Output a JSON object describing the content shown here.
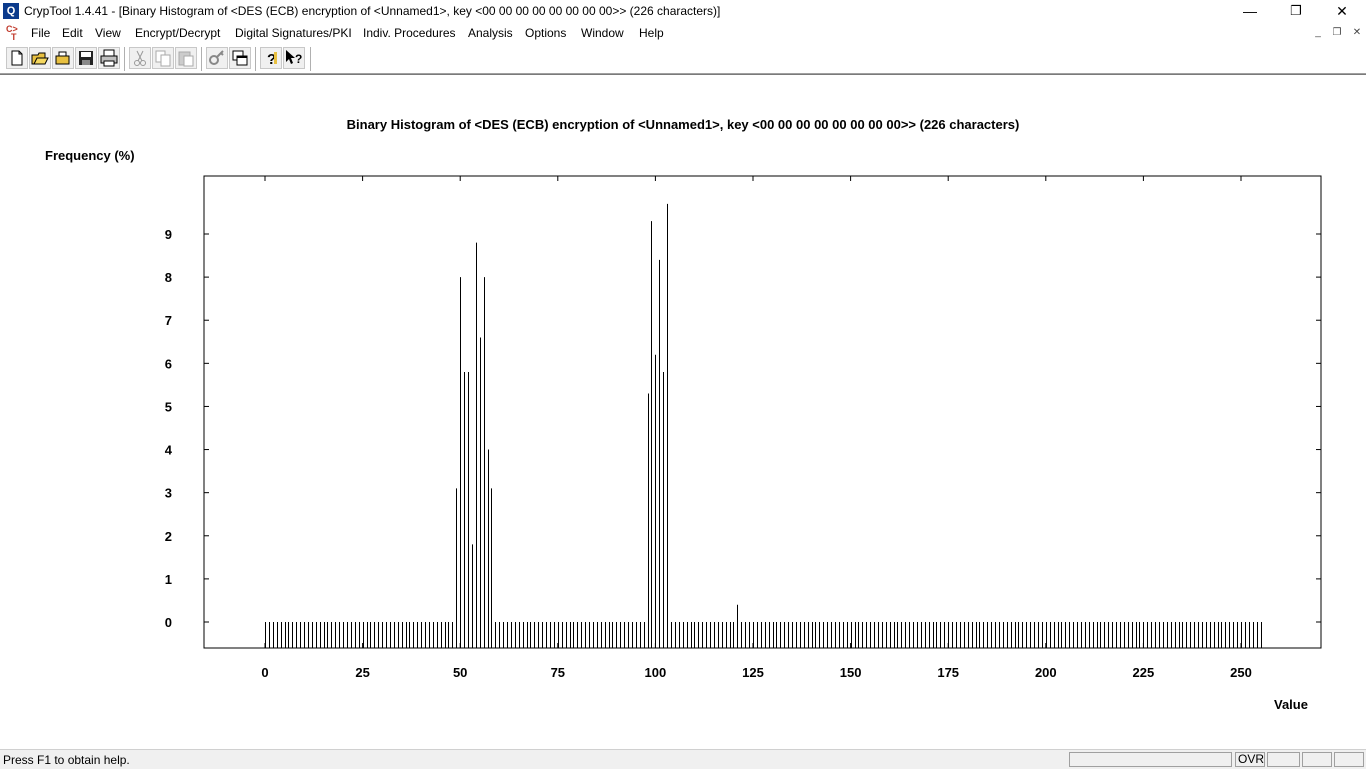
{
  "window": {
    "title": "CrypTool 1.4.41 - [Binary Histogram of <DES (ECB) encryption of <Unnamed1>, key <00 00 00 00 00 00 00 00>> (226 characters)]",
    "app_icon": "cryptool-logo-icon",
    "minimize_symbol": "—",
    "restore_symbol": "❐",
    "close_symbol": "✕"
  },
  "menubar": {
    "items": [
      "File",
      "Edit",
      "View",
      "Encrypt/Decrypt",
      "Digital Signatures/PKI",
      "Indiv. Procedures",
      "Analysis",
      "Options",
      "Window",
      "Help"
    ],
    "mdi_minimize": "_",
    "mdi_restore": "❐",
    "mdi_close": "✕"
  },
  "toolbar": {
    "buttons": [
      "new-document-icon",
      "open-folder-icon",
      "open-file-icon",
      "save-icon",
      "print-icon",
      "cut-icon",
      "copy-icon",
      "paste-icon",
      "key-icon",
      "window-icon",
      "help-icon",
      "context-help-icon"
    ]
  },
  "chart_data": {
    "type": "bar",
    "title": "Binary Histogram of <DES (ECB) encryption of <Unnamed1>, key <00 00 00 00 00 00 00 00>> (226 characters)",
    "ylabel": "Frequency (%)",
    "xlabel": "Value",
    "xlim": [
      0,
      255
    ],
    "ylim": [
      0,
      10
    ],
    "xticks": [
      0,
      25,
      50,
      75,
      100,
      125,
      150,
      175,
      200,
      225,
      250
    ],
    "yticks": [
      0,
      1,
      2,
      3,
      4,
      5,
      6,
      7,
      8,
      9
    ],
    "grid": false,
    "nonzero_values": [
      {
        "x": 49,
        "y": 3.1
      },
      {
        "x": 50,
        "y": 8.0
      },
      {
        "x": 51,
        "y": 5.8
      },
      {
        "x": 52,
        "y": 5.8
      },
      {
        "x": 53,
        "y": 1.8
      },
      {
        "x": 54,
        "y": 8.8
      },
      {
        "x": 55,
        "y": 6.6
      },
      {
        "x": 56,
        "y": 8.0
      },
      {
        "x": 57,
        "y": 4.0
      },
      {
        "x": 58,
        "y": 3.1
      },
      {
        "x": 98,
        "y": 5.3
      },
      {
        "x": 99,
        "y": 9.3
      },
      {
        "x": 100,
        "y": 6.2
      },
      {
        "x": 101,
        "y": 8.4
      },
      {
        "x": 102,
        "y": 5.8
      },
      {
        "x": 103,
        "y": 9.7
      },
      {
        "x": 121,
        "y": 0.4
      }
    ],
    "all_other_values": 0
  },
  "statusbar": {
    "help_text": "Press F1 to obtain help.",
    "ovr": "OVR"
  }
}
